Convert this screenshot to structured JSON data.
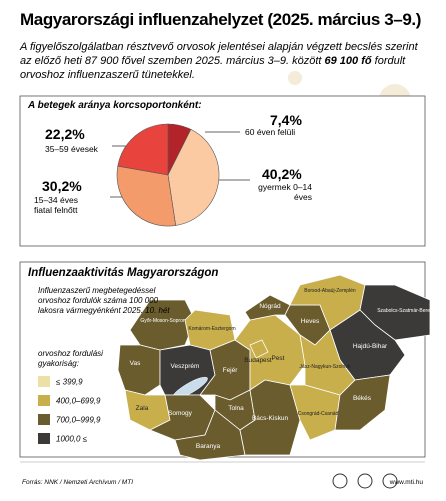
{
  "header": {
    "title": "Magyarországi influenzahelyzet (2025. március 3–9.)",
    "intro_before": "A figyelőszolgálatban résztvevő orvosok jelentései alapján végzett becslés szerint az előző heti 87 900 fővel szemben 2025. március 3–9. között ",
    "intro_bold": "69 100 fő",
    "intro_after": " fordult orvoshoz influenzaszerű tünetekkel."
  },
  "chart_data": {
    "type": "pie",
    "title": "A betegek aránya korcsoportonként:",
    "categories": [
      "60 éven felüli",
      "gyermek 0–14 éves",
      "15–34 éves fiatal felnőtt",
      "35–59 évesek"
    ],
    "values": [
      7.4,
      40.2,
      30.2,
      22.2
    ],
    "value_labels": [
      "7,4%",
      "40,2%",
      "30,2%",
      "22,2%"
    ],
    "colors": [
      "#b3232a",
      "#fbcaa2",
      "#f49b6c",
      "#e8433d"
    ]
  },
  "map": {
    "title": "Influenzaaktivitás Magyarországon",
    "subtitle": "Influenzaszerű megbetegedéssel orvoshoz fordulók száma 100 000 lakosra vármegyénként 2025. 10. hét",
    "legend_title": "orvoshoz fordulási gyakoriság:",
    "legend": [
      {
        "label": "≤ 399,9",
        "color": "#ece0a6"
      },
      {
        "label": "400,0–699,9",
        "color": "#c8af4c"
      },
      {
        "label": "700,0–999,9",
        "color": "#6b5c2d"
      },
      {
        "label": "1000,0 ≤",
        "color": "#3b3a38"
      }
    ],
    "counties": [
      {
        "name": "Győr-Moson-Sopron",
        "color": "#6b5c2d"
      },
      {
        "name": "Komárom-Esztergom",
        "color": "#c8af4c"
      },
      {
        "name": "Vas",
        "color": "#6b5c2d"
      },
      {
        "name": "Veszprém",
        "color": "#3b3a38"
      },
      {
        "name": "Zala",
        "color": "#c8af4c"
      },
      {
        "name": "Somogy",
        "color": "#6b5c2d"
      },
      {
        "name": "Fejér",
        "color": "#6b5c2d"
      },
      {
        "name": "Tolna",
        "color": "#6b5c2d"
      },
      {
        "name": "Baranya",
        "color": "#6b5c2d"
      },
      {
        "name": "Pest",
        "color": "#c8af4c"
      },
      {
        "name": "Nógrád",
        "color": "#6b5c2d"
      },
      {
        "name": "Heves",
        "color": "#6b5c2d"
      },
      {
        "name": "Borsod-Abaúj-Zemplén",
        "color": "#c8af4c"
      },
      {
        "name": "Szabolcs-Szatmár-Bereg",
        "color": "#3b3a38"
      },
      {
        "name": "Hajdú-Bihar",
        "color": "#3b3a38"
      },
      {
        "name": "Jász-Nagykun-Szolnok",
        "color": "#c8af4c"
      },
      {
        "name": "Bács-Kiskun",
        "color": "#6b5c2d"
      },
      {
        "name": "Csongrád-Csanád",
        "color": "#c8af4c"
      },
      {
        "name": "Békés",
        "color": "#6b5c2d"
      },
      {
        "name": "Budapest",
        "color": "#c8af4c"
      }
    ]
  },
  "footer": {
    "source": "Forrás: NNK / Nemzeti Archívum / MTI",
    "url": "www.mti.hu"
  }
}
